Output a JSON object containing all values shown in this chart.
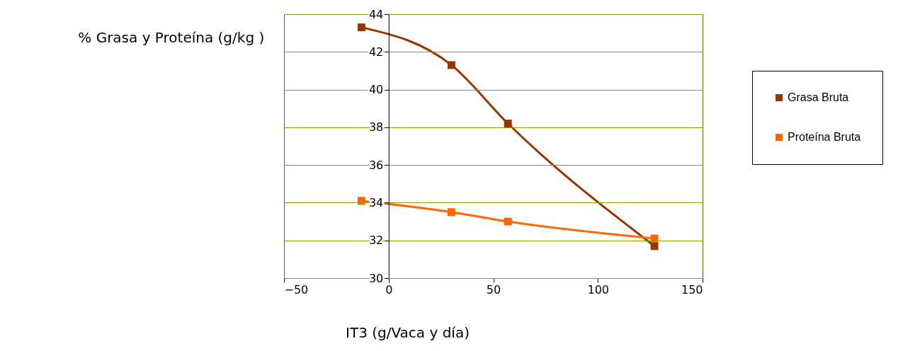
{
  "chart_data": {
    "type": "line",
    "xlabel": "IT3 (g/Vaca y día)",
    "ylabel": "% Grasa y Proteína (g/kg )",
    "x": [
      -13,
      30,
      57,
      127
    ],
    "series": [
      {
        "name": "Grasa Bruta",
        "color": "#993300",
        "values": [
          43.3,
          41.3,
          38.2,
          31.7
        ]
      },
      {
        "name": "Proteína Bruta",
        "color": "#ff6600",
        "values": [
          34.1,
          33.5,
          33.0,
          32.1
        ]
      }
    ],
    "xlim": [
      -50,
      150
    ],
    "xticks": [
      -50,
      0,
      50,
      100,
      150
    ],
    "ylim": [
      30,
      44
    ],
    "yticks": [
      30,
      32,
      34,
      36,
      38,
      40,
      42,
      44
    ],
    "grid": "y",
    "legend": "right",
    "marker": "square",
    "line_style": "solid"
  }
}
